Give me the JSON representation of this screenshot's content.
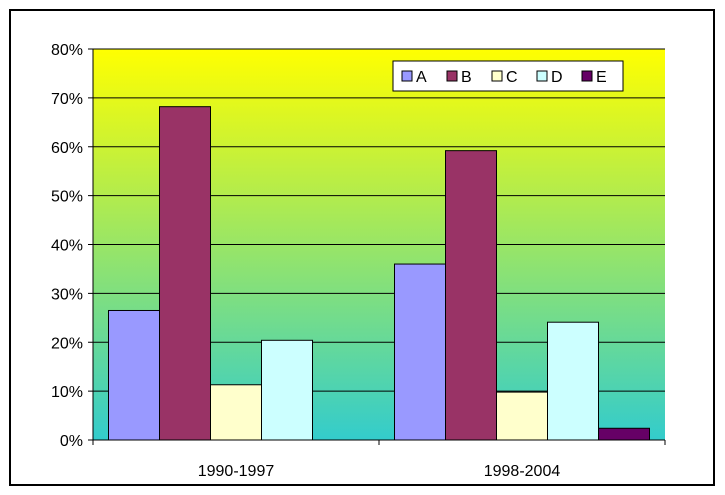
{
  "chart_data": {
    "type": "bar",
    "categories": [
      "1990-1997",
      "1998-2004"
    ],
    "series": [
      {
        "name": "A",
        "values": [
          26.5,
          36.0
        ],
        "color": "#9999ff"
      },
      {
        "name": "B",
        "values": [
          68.2,
          59.2
        ],
        "color": "#993366"
      },
      {
        "name": "C",
        "values": [
          11.3,
          9.8
        ],
        "color": "#ffffcc"
      },
      {
        "name": "D",
        "values": [
          20.4,
          24.1
        ],
        "color": "#ccffff"
      },
      {
        "name": "E",
        "values": [
          0.0,
          2.4
        ],
        "color": "#660066"
      }
    ],
    "ylim": [
      0,
      80
    ],
    "yticks": [
      "0%",
      "10%",
      "20%",
      "30%",
      "40%",
      "50%",
      "60%",
      "70%",
      "80%"
    ],
    "ytick_values": [
      0,
      10,
      20,
      30,
      40,
      50,
      60,
      70,
      80
    ],
    "grid": true,
    "legend_position": "top-right",
    "plot_background": {
      "top": "#ffff00",
      "bottom": "#33cccc"
    }
  }
}
